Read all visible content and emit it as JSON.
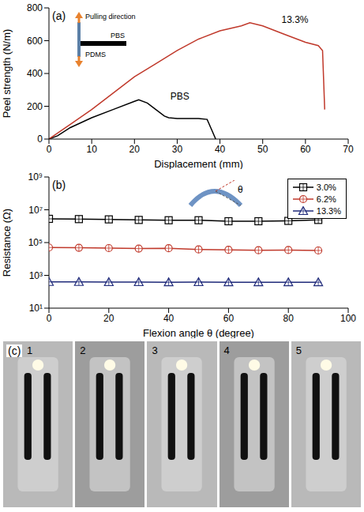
{
  "chart_data": [
    {
      "type": "line",
      "title": "(a)",
      "x_label": "Displacement (mm)",
      "y_label": "Peel strength (N/m)",
      "xlim": [
        0,
        70
      ],
      "xticks": [
        0,
        10,
        20,
        30,
        40,
        50,
        60,
        70
      ],
      "ylim": [
        0,
        800
      ],
      "yticks": [
        0,
        200,
        400,
        600,
        800
      ],
      "annotations": [
        "Pulling direction",
        "PBS",
        "PDMS"
      ],
      "series": [
        {
          "name": "PBS",
          "color": "#000000",
          "x": [
            0,
            2,
            5,
            10,
            15,
            20,
            21,
            23,
            25,
            27,
            28,
            30,
            35,
            37,
            38,
            39
          ],
          "values": [
            0,
            20,
            70,
            130,
            180,
            230,
            240,
            220,
            180,
            140,
            130,
            125,
            125,
            120,
            60,
            0
          ]
        },
        {
          "name": "13.3%",
          "color": "#c0392b",
          "x": [
            0,
            5,
            10,
            15,
            20,
            25,
            30,
            35,
            40,
            45,
            47,
            50,
            55,
            60,
            63,
            64,
            64.5
          ],
          "values": [
            0,
            90,
            180,
            280,
            380,
            460,
            540,
            610,
            660,
            690,
            710,
            690,
            640,
            590,
            570,
            540,
            180
          ]
        }
      ]
    },
    {
      "type": "line",
      "title": "(b)",
      "x_label": "Flexion angle θ (degree)",
      "y_label": "Resistance (Ω)",
      "log": "y",
      "xlim": [
        0,
        100
      ],
      "xticks": [
        0,
        20,
        40,
        60,
        80,
        100
      ],
      "ylim": [
        10,
        1000000000
      ],
      "yticks": [
        {
          "value": 10,
          "label": "10¹"
        },
        {
          "value": 1000,
          "label": "10³"
        },
        {
          "value": 100000,
          "label": "10⁵"
        },
        {
          "value": 10000000,
          "label": "10⁷"
        },
        {
          "value": 1000000000,
          "label": "10⁹"
        }
      ],
      "annotations": [
        "θ"
      ],
      "legend": "upper right",
      "x": [
        0,
        10,
        20,
        30,
        40,
        50,
        60,
        70,
        80,
        90
      ],
      "series": [
        {
          "name": "3.0%",
          "color": "#000000",
          "marker": "square",
          "values": [
            2800000,
            2700000,
            2600000,
            2400000,
            2300000,
            2300000,
            2000000,
            2000000,
            2100000,
            2400000
          ]
        },
        {
          "name": "6.2%",
          "color": "#c0392b",
          "marker": "circle",
          "values": [
            50000,
            48000,
            46000,
            43000,
            45000,
            38000,
            36000,
            34000,
            35000,
            33000
          ]
        },
        {
          "name": "13.3%",
          "color": "#1f2a7a",
          "marker": "triangle",
          "values": [
            400,
            400,
            390,
            390,
            380,
            390,
            380,
            380,
            380,
            380
          ]
        }
      ]
    }
  ],
  "panel_c": {
    "label": "(c)",
    "frames": [
      "1",
      "2",
      "3",
      "4",
      "5"
    ]
  }
}
